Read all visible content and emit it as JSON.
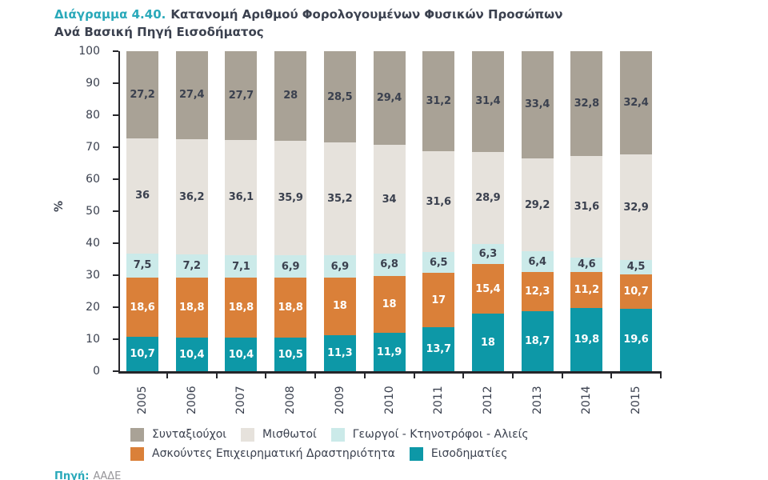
{
  "title": {
    "prefix": "Διάγραμμα 4.40.",
    "line1": "Κατανομή Αριθμού Φορολογουμένων Φυσικών Προσώπων",
    "line2": "Ανά Βασική Πηγή Εισοδήματος"
  },
  "source": {
    "label": "Πηγή:",
    "value": "ΑΑΔΕ"
  },
  "colors": {
    "accent": "#2AA9BA",
    "text": "#3B414F",
    "axis": "#26262A",
    "muted": "#97969A",
    "bg": "#FFFFFF"
  },
  "chart_data": {
    "type": "bar",
    "stacked": true,
    "title": "Κατανομή Αριθμού Φορολογουμένων Φυσικών Προσώπων Ανά Βασική Πηγή Εισοδήματος",
    "xlabel": "",
    "ylabel": "%",
    "ylim": [
      0,
      100
    ],
    "ytick_step": 10,
    "grid": false,
    "legend_position": "bottom",
    "categories": [
      "2005",
      "2006",
      "2007",
      "2008",
      "2009",
      "2010",
      "2011",
      "2012",
      "2013",
      "2014",
      "2015"
    ],
    "series": [
      {
        "name": "Εισοδηματίες",
        "color": "#0D98A7",
        "label_color": "#FFFFFF",
        "values": [
          10.7,
          10.4,
          10.4,
          10.5,
          11.3,
          11.9,
          13.7,
          18,
          18.7,
          19.8,
          19.6
        ],
        "labels": [
          "10,7",
          "10,4",
          "10,4",
          "10,5",
          "11,3",
          "11,9",
          "13,7",
          "18",
          "18,7",
          "19,8",
          "19,6"
        ]
      },
      {
        "name": "Ασκούντες Επιχειρηματική Δραστηριότητα",
        "color": "#DA8039",
        "label_color": "#FFFFFF",
        "values": [
          18.6,
          18.8,
          18.8,
          18.8,
          18,
          18,
          17,
          15.4,
          12.3,
          11.2,
          10.7
        ],
        "labels": [
          "18,6",
          "18,8",
          "18,8",
          "18,8",
          "18",
          "18",
          "17",
          "15,4",
          "12,3",
          "11,2",
          "10,7"
        ]
      },
      {
        "name": "Γεωργοί - Κτηνοτρόφοι - Αλιείς",
        "color": "#CBEAE9",
        "label_color": "#3B414F",
        "values": [
          7.5,
          7.2,
          7.1,
          6.9,
          6.9,
          6.8,
          6.5,
          6.3,
          6.4,
          4.6,
          4.5
        ],
        "labels": [
          "7,5",
          "7,2",
          "7,1",
          "6,9",
          "6,9",
          "6,8",
          "6,5",
          "6,3",
          "6,4",
          "4,6",
          "4,5"
        ]
      },
      {
        "name": "Μισθωτοί",
        "color": "#E6E2DC",
        "label_color": "#3B414F",
        "values": [
          36,
          36.2,
          36.1,
          35.9,
          35.2,
          34,
          31.6,
          28.9,
          29.2,
          31.6,
          32.9
        ],
        "labels": [
          "36",
          "36,2",
          "36,1",
          "35,9",
          "35,2",
          "34",
          "31,6",
          "28,9",
          "29,2",
          "31,6",
          "32,9"
        ]
      },
      {
        "name": "Συνταξιούχοι",
        "color": "#A9A296",
        "label_color": "#3B414F",
        "values": [
          27.2,
          27.4,
          27.7,
          28,
          28.5,
          29.4,
          31.2,
          31.4,
          33.4,
          32.8,
          32.4
        ],
        "labels": [
          "27,2",
          "27,4",
          "27,7",
          "28",
          "28,5",
          "29,4",
          "31,2",
          "31,4",
          "33,4",
          "32,8",
          "32,4"
        ]
      }
    ],
    "legend_rows": [
      [
        "Συνταξιούχοι",
        "Μισθωτοί",
        "Γεωργοί - Κτηνοτρόφοι - Αλιείς"
      ],
      [
        "Ασκούντες Επιχειρηματική Δραστηριότητα",
        "Εισοδηματίες"
      ]
    ]
  }
}
